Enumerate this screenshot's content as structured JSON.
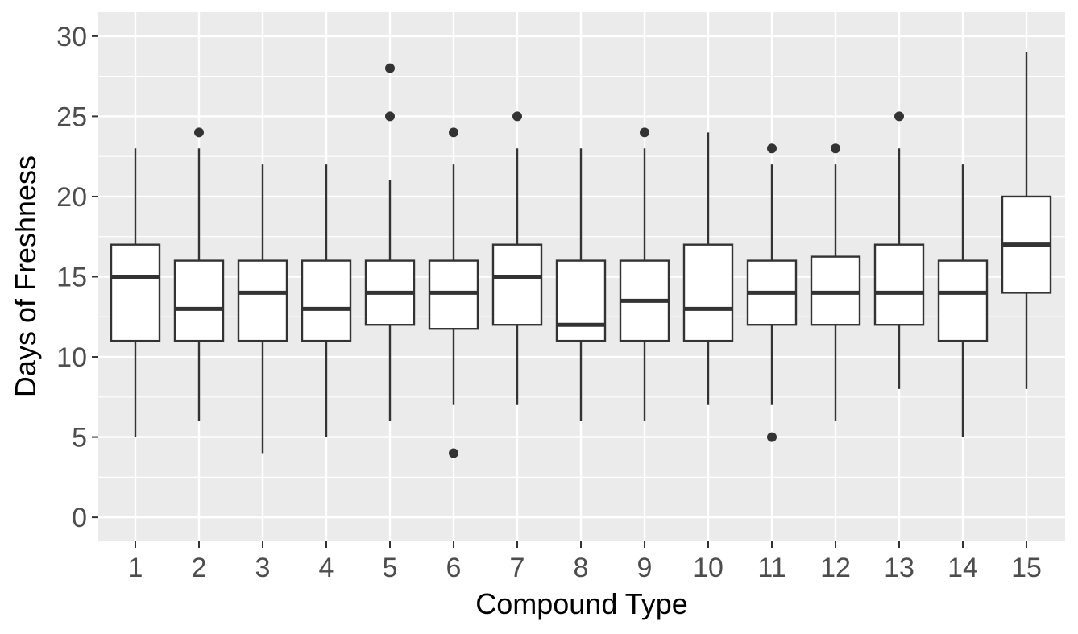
{
  "chart_data": {
    "type": "box",
    "xlabel": "Compound Type",
    "ylabel": "Days of Freshness",
    "ylim": [
      -1.5,
      31.5
    ],
    "yticks": [
      0,
      5,
      10,
      15,
      20,
      25,
      30
    ],
    "grid": true,
    "colors": {
      "panel": "#ebebeb",
      "grid": "#ffffff",
      "box_fill": "#ffffff",
      "box_line": "#333333"
    },
    "categories": [
      "1",
      "2",
      "3",
      "4",
      "5",
      "6",
      "7",
      "8",
      "9",
      "10",
      "11",
      "12",
      "13",
      "14",
      "15"
    ],
    "boxes": [
      {
        "q1": 11,
        "median": 15,
        "q3": 17,
        "whisker_low": 5,
        "whisker_high": 23,
        "outliers": []
      },
      {
        "q1": 11,
        "median": 13,
        "q3": 16,
        "whisker_low": 6,
        "whisker_high": 23,
        "outliers": [
          24
        ]
      },
      {
        "q1": 11,
        "median": 14,
        "q3": 16,
        "whisker_low": 4,
        "whisker_high": 22,
        "outliers": []
      },
      {
        "q1": 11,
        "median": 13,
        "q3": 16,
        "whisker_low": 5,
        "whisker_high": 22,
        "outliers": []
      },
      {
        "q1": 12,
        "median": 14,
        "q3": 16,
        "whisker_low": 6,
        "whisker_high": 21,
        "outliers": [
          25,
          28
        ]
      },
      {
        "q1": 11.75,
        "median": 14,
        "q3": 16,
        "whisker_low": 7,
        "whisker_high": 22,
        "outliers": [
          24,
          4
        ]
      },
      {
        "q1": 12,
        "median": 15,
        "q3": 17,
        "whisker_low": 7,
        "whisker_high": 23,
        "outliers": [
          25
        ]
      },
      {
        "q1": 11,
        "median": 12,
        "q3": 16,
        "whisker_low": 6,
        "whisker_high": 23,
        "outliers": []
      },
      {
        "q1": 11,
        "median": 13.5,
        "q3": 16,
        "whisker_low": 6,
        "whisker_high": 23,
        "outliers": [
          24
        ]
      },
      {
        "q1": 11,
        "median": 13,
        "q3": 17,
        "whisker_low": 7,
        "whisker_high": 24,
        "outliers": []
      },
      {
        "q1": 12,
        "median": 14,
        "q3": 16,
        "whisker_low": 7,
        "whisker_high": 22,
        "outliers": [
          23,
          5
        ]
      },
      {
        "q1": 12,
        "median": 14,
        "q3": 16.25,
        "whisker_low": 6,
        "whisker_high": 22,
        "outliers": [
          23
        ]
      },
      {
        "q1": 12,
        "median": 14,
        "q3": 17,
        "whisker_low": 8,
        "whisker_high": 23,
        "outliers": [
          25
        ]
      },
      {
        "q1": 11,
        "median": 14,
        "q3": 16,
        "whisker_low": 5,
        "whisker_high": 22,
        "outliers": []
      },
      {
        "q1": 14,
        "median": 17,
        "q3": 20,
        "whisker_low": 8,
        "whisker_high": 29,
        "outliers": []
      }
    ]
  }
}
